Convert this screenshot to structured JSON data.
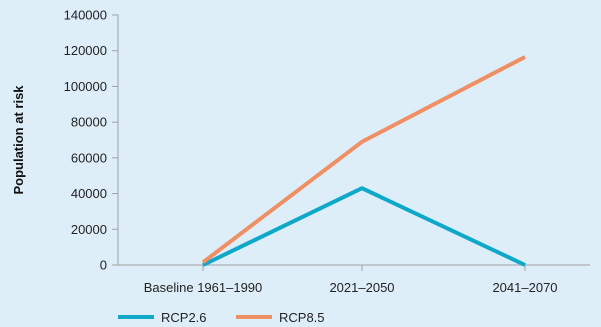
{
  "chart_data": {
    "type": "line",
    "categories": [
      "Baseline 1961–1990",
      "2021–2050",
      "2041–2070"
    ],
    "series": [
      {
        "name": "RCP2.6",
        "values": [
          0,
          43000,
          0
        ],
        "color": "#0fa8c9"
      },
      {
        "name": "RCP8.5",
        "values": [
          1500,
          69000,
          116500
        ],
        "color": "#ef8f63"
      }
    ],
    "title": "",
    "xlabel": "",
    "ylabel": "Population at risk",
    "ylim": [
      0,
      140000
    ],
    "yticks": [
      "0",
      "20000",
      "40000",
      "60000",
      "80000",
      "100000",
      "120000",
      "140000"
    ],
    "grid": false,
    "legend": "bottom-left"
  },
  "background_color": "#deeef9",
  "axis_color": "#a0a0a0"
}
